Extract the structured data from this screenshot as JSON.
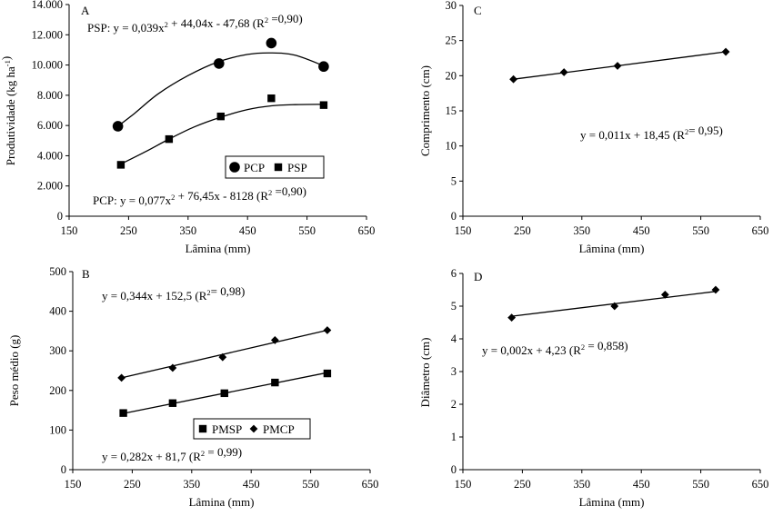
{
  "chart_data": [
    {
      "panel": "A",
      "type": "scatter",
      "xlabel": "Lâmina (mm)",
      "ylabel": "Produtividade (kg ha",
      "ylabel_sup": "-1",
      "ylabel_close": ")",
      "xlim": [
        150,
        650
      ],
      "ylim": [
        0,
        14000
      ],
      "xticks": [
        150,
        250,
        350,
        450,
        550,
        650
      ],
      "yticks": [
        0,
        2000,
        4000,
        6000,
        8000,
        10000,
        12000,
        14000
      ],
      "ytick_labels": [
        "0",
        "2.000",
        "4.000",
        "6.000",
        "8.000",
        "10.000",
        "12.000",
        "14.000"
      ],
      "legend_position": "bottom-right",
      "series": [
        {
          "name": "PCP",
          "marker": "circle",
          "x": [
            232,
            402,
            490,
            578
          ],
          "y": [
            5950,
            10100,
            11450,
            9900
          ],
          "trend": "quadratic",
          "trend_x": [
            232,
            578
          ],
          "trend_pts": [
            [
              232,
              5950
            ],
            [
              260,
              6800
            ],
            [
              300,
              8100
            ],
            [
              350,
              9300
            ],
            [
              400,
              10200
            ],
            [
              450,
              10700
            ],
            [
              490,
              10800
            ],
            [
              530,
              10650
            ],
            [
              578,
              9950
            ]
          ]
        },
        {
          "name": "PSP",
          "marker": "square",
          "x": [
            237,
            318,
            405,
            490,
            578
          ],
          "y": [
            3400,
            5100,
            6600,
            7800,
            7350
          ],
          "trend": "quadratic",
          "trend_pts": [
            [
              237,
              3450
            ],
            [
              280,
              4300
            ],
            [
              318,
              5100
            ],
            [
              360,
              5900
            ],
            [
              405,
              6550
            ],
            [
              450,
              7050
            ],
            [
              490,
              7300
            ],
            [
              530,
              7380
            ],
            [
              578,
              7400
            ]
          ]
        }
      ],
      "annotations": [
        {
          "id": "psp-eq",
          "pre": "PSP: y = 0,039x",
          "sup1": "2",
          "mid": " + 44,04x - 47,68 (R",
          "sup2": "2",
          "post": " =0,90)"
        },
        {
          "id": "pcp-eq",
          "pre": "PCP: y = 0,077x",
          "sup1": "2",
          "mid": " + 76,45x - 8128 (R",
          "sup2": "2",
          "post": " =0,90)"
        }
      ]
    },
    {
      "panel": "B",
      "type": "scatter",
      "xlabel": "Lâmina (mm)",
      "ylabel": "Peso médio (g)",
      "xlim": [
        150,
        650
      ],
      "ylim": [
        0,
        500
      ],
      "xticks": [
        150,
        250,
        350,
        450,
        550,
        650
      ],
      "yticks": [
        0,
        100,
        200,
        300,
        400,
        500
      ],
      "legend_position": "bottom-right",
      "series": [
        {
          "name": "PMSP",
          "marker": "square",
          "x": [
            235,
            318,
            405,
            490,
            578
          ],
          "y": [
            143,
            168,
            193,
            220,
            243
          ],
          "trend": "linear",
          "trend_x": [
            235,
            578
          ],
          "trend_y": [
            142,
            245
          ]
        },
        {
          "name": "PMCP",
          "marker": "diamond",
          "x": [
            232,
            318,
            402,
            490,
            578
          ],
          "y": [
            232,
            257,
            284,
            327,
            352
          ],
          "trend": "linear",
          "trend_x": [
            232,
            578
          ],
          "trend_y": [
            232,
            352
          ]
        }
      ],
      "annotations": [
        {
          "id": "pmcp-eq",
          "pre": "y = 0,344x + 152,5 (R",
          "sup2": "2",
          "post": "= 0,98)"
        },
        {
          "id": "pmsp-eq",
          "pre": "y = 0,282x + 81,7 (R",
          "sup2": "2",
          "post": " = 0,99)"
        }
      ]
    },
    {
      "panel": "C",
      "type": "scatter",
      "xlabel": "Lâmina (mm)",
      "ylabel": "Comprimento (cm)",
      "xlim": [
        150,
        650
      ],
      "ylim": [
        0,
        30
      ],
      "xticks": [
        150,
        250,
        350,
        450,
        550,
        650
      ],
      "yticks": [
        0,
        5,
        10,
        15,
        20,
        25,
        30
      ],
      "series": [
        {
          "name": "",
          "marker": "diamond",
          "x": [
            235,
            320,
            410,
            592
          ],
          "y": [
            19.5,
            20.5,
            21.4,
            23.4
          ],
          "trend": "linear",
          "trend_x": [
            235,
            592
          ],
          "trend_y": [
            19.5,
            23.4
          ]
        }
      ],
      "annotations": [
        {
          "id": "comp-eq",
          "pre": "y = 0,011x + 18,45  (R",
          "sup2": "2",
          "post": "= 0,95)"
        }
      ]
    },
    {
      "panel": "D",
      "type": "scatter",
      "xlabel": "Lâmina (mm)",
      "ylabel": "Diâmetro (cm)",
      "xlim": [
        150,
        650
      ],
      "ylim": [
        0,
        6
      ],
      "xticks": [
        150,
        250,
        350,
        450,
        550,
        650
      ],
      "yticks": [
        0,
        1,
        2,
        3,
        4,
        5,
        6
      ],
      "series": [
        {
          "name": "",
          "marker": "diamond",
          "x": [
            232,
            405,
            490,
            575
          ],
          "y": [
            4.65,
            5.0,
            5.35,
            5.5
          ],
          "trend": "linear",
          "trend_x": [
            232,
            575
          ],
          "trend_y": [
            4.69,
            5.45
          ]
        }
      ],
      "annotations": [
        {
          "id": "diam-eq",
          "pre": "y = 0,002x + 4,23 (R",
          "sup2": "2",
          "post": " = 0,858)"
        }
      ]
    }
  ]
}
